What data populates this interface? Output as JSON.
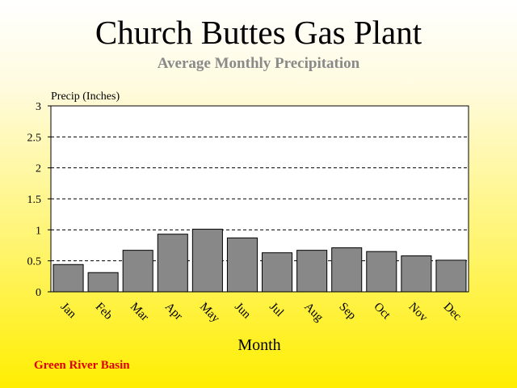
{
  "title": "Church Buttes Gas Plant",
  "subtitle": "Average Monthly Precipitation",
  "footer": "Green River Basin",
  "colors": {
    "bar_fill": "#888888",
    "bar_stroke": "#000000",
    "plot_background": "#ffffff",
    "footer_text": "#e00000",
    "subtitle_text": "#8a8a8a"
  },
  "chart_data": {
    "type": "bar",
    "title": "Church Buttes Gas Plant",
    "subtitle": "Average Monthly Precipitation",
    "xlabel": "Month",
    "ylabel": "Precip (Inches)",
    "categories": [
      "Jan",
      "Feb",
      "Mar",
      "Apr",
      "May",
      "Jun",
      "Jul",
      "Aug",
      "Sep",
      "Oct",
      "Nov",
      "Dec"
    ],
    "values": [
      0.44,
      0.31,
      0.67,
      0.93,
      1.01,
      0.87,
      0.63,
      0.67,
      0.71,
      0.65,
      0.58,
      0.51
    ],
    "ylim": [
      0,
      3
    ],
    "yticks": [
      0,
      0.5,
      1,
      1.5,
      2,
      2.5,
      3
    ],
    "ytick_labels": [
      "0",
      "0.5",
      "1",
      "1.5",
      "2",
      "2.5",
      "3"
    ],
    "grid": "horizontal-dashed",
    "legend": "none"
  }
}
